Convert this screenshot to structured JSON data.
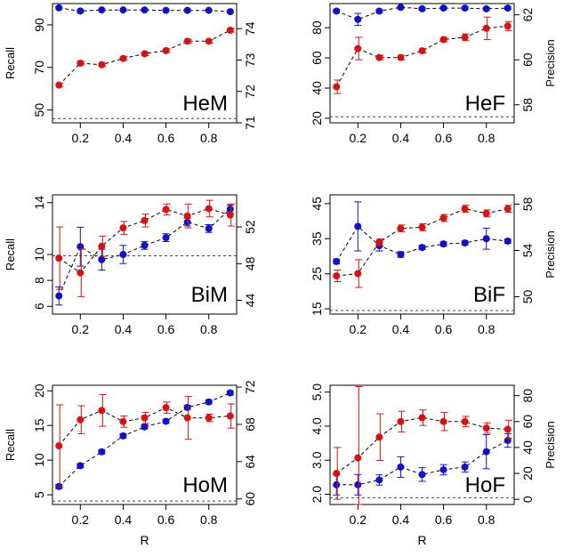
{
  "figure": {
    "colors": {
      "recall": "#1010d0",
      "precision": "#dd1010",
      "line": "#000000",
      "baseline": "#444444"
    }
  },
  "chart_data": [
    {
      "type": "line",
      "title": "HeM",
      "x": [
        0.1,
        0.2,
        0.3,
        0.4,
        0.5,
        0.6,
        0.7,
        0.8,
        0.9
      ],
      "xticks": [
        "0.2",
        "0.4",
        "0.6",
        "0.8"
      ],
      "xlabel": "",
      "left_axis": {
        "label": "Recall",
        "range": [
          44,
          100
        ],
        "ticks": [
          "50",
          "70",
          "90"
        ],
        "tick_values": [
          50,
          70,
          90
        ]
      },
      "right_axis": {
        "label": "",
        "range": [
          71.0,
          74.8
        ],
        "ticks": [
          "71",
          "72",
          "73",
          "74"
        ],
        "tick_values": [
          71,
          72,
          73,
          74
        ]
      },
      "series": [
        {
          "axis": "left",
          "color": "#1010d0",
          "values": [
            98,
            96.5,
            97,
            97,
            97,
            96.8,
            96.8,
            96.8,
            96.2
          ],
          "errors": [
            0.4,
            0.6,
            0.4,
            0.4,
            0.4,
            0.4,
            0.4,
            0.4,
            0.4
          ]
        },
        {
          "axis": "right",
          "color": "#dd1010",
          "values": [
            72.2,
            72.9,
            72.85,
            73.05,
            73.2,
            73.3,
            73.6,
            73.6,
            73.95
          ],
          "errors": [
            0.06,
            0.06,
            0.06,
            0.06,
            0.06,
            0.06,
            0.06,
            0.06,
            0.06
          ]
        }
      ],
      "baseline": 46
    },
    {
      "type": "line",
      "title": "HeF",
      "x": [
        0.1,
        0.2,
        0.3,
        0.4,
        0.5,
        0.6,
        0.7,
        0.8,
        0.9
      ],
      "xticks": [
        "0.2",
        "0.4",
        "0.6",
        "0.8"
      ],
      "xlabel": "",
      "left_axis": {
        "label": "",
        "range": [
          17,
          96
        ],
        "ticks": [
          "20",
          "40",
          "60",
          "80"
        ],
        "tick_values": [
          20,
          40,
          60,
          80
        ]
      },
      "right_axis": {
        "label": "Precision",
        "range": [
          57.2,
          62.5
        ],
        "ticks": [
          "58",
          "60",
          "62"
        ],
        "tick_values": [
          58,
          60,
          62
        ]
      },
      "series": [
        {
          "axis": "left",
          "color": "#1010d0",
          "values": [
            91,
            85.5,
            91,
            93.5,
            92.5,
            93,
            93,
            92.5,
            93
          ],
          "errors": [
            1,
            4,
            1,
            0.8,
            0.8,
            0.8,
            0.8,
            0.8,
            0.8
          ]
        },
        {
          "axis": "right",
          "color": "#dd1010",
          "values": [
            58.8,
            60.5,
            60.1,
            60.1,
            60.4,
            60.9,
            61.0,
            61.4,
            61.5
          ],
          "errors": [
            0.3,
            0.5,
            0.1,
            0.1,
            0.1,
            0.1,
            0.15,
            0.5,
            0.2
          ]
        }
      ],
      "baseline": 21
    },
    {
      "type": "line",
      "title": "BiM",
      "x": [
        0.1,
        0.2,
        0.3,
        0.4,
        0.5,
        0.6,
        0.7,
        0.8,
        0.9
      ],
      "xticks": [
        "0.2",
        "0.4",
        "0.6",
        "0.8"
      ],
      "xlabel": "",
      "left_axis": {
        "label": "Recall",
        "range": [
          5.4,
          14.6
        ],
        "ticks": [
          "6",
          "8",
          "10",
          "14"
        ],
        "tick_values": [
          6,
          8,
          10,
          14
        ]
      },
      "right_axis": {
        "label": "",
        "range": [
          42.5,
          55.5
        ],
        "ticks": [
          "44",
          "48",
          "52"
        ],
        "tick_values": [
          44,
          48,
          52
        ]
      },
      "series": [
        {
          "axis": "left",
          "color": "#1010d0",
          "values": [
            6.8,
            10.6,
            9.6,
            10.0,
            10.7,
            11.3,
            12.5,
            12.0,
            13.5
          ],
          "errors": [
            0.7,
            1.5,
            0.8,
            0.7,
            0.3,
            0.3,
            0.3,
            0.3,
            0.3
          ]
        },
        {
          "axis": "right",
          "color": "#dd1010",
          "values": [
            48.6,
            47.0,
            49.9,
            51.9,
            52.7,
            53.9,
            53.2,
            54.0,
            53.3
          ],
          "errors": [
            3.4,
            2.6,
            1.1,
            0.7,
            0.7,
            0.6,
            1.3,
            0.9,
            1.2
          ]
        }
      ],
      "baseline": 9.9
    },
    {
      "type": "line",
      "title": "BiF",
      "x": [
        0.1,
        0.2,
        0.3,
        0.4,
        0.5,
        0.6,
        0.7,
        0.8,
        0.9
      ],
      "xticks": [
        "0.2",
        "0.4",
        "0.6",
        "0.8"
      ],
      "xlabel": "",
      "left_axis": {
        "label": "",
        "range": [
          13.5,
          47.5
        ],
        "ticks": [
          "15",
          "25",
          "35",
          "45"
        ],
        "tick_values": [
          15,
          25,
          35,
          45
        ]
      },
      "right_axis": {
        "label": "Precision",
        "range": [
          48.5,
          58.8
        ],
        "ticks": [
          "50",
          "54",
          "58"
        ],
        "tick_values": [
          50,
          54,
          58
        ]
      },
      "series": [
        {
          "axis": "left",
          "color": "#1010d0",
          "values": [
            28.5,
            38.5,
            33.0,
            30.5,
            32.5,
            33.5,
            33.8,
            35.0,
            34.3
          ],
          "errors": [
            0.7,
            7,
            1.5,
            0.8,
            0.6,
            0.6,
            0.6,
            3,
            0.6
          ]
        },
        {
          "axis": "right",
          "color": "#dd1010",
          "values": [
            51.8,
            52.0,
            54.7,
            55.9,
            56.0,
            56.8,
            57.6,
            57.2,
            57.6
          ],
          "errors": [
            0.5,
            1.2,
            0.3,
            0.3,
            0.3,
            0.3,
            0.3,
            0.3,
            0.3
          ]
        }
      ],
      "baseline": 14.5
    },
    {
      "type": "line",
      "title": "HoM",
      "x": [
        0.1,
        0.2,
        0.3,
        0.4,
        0.5,
        0.6,
        0.7,
        0.8,
        0.9
      ],
      "xticks": [
        "0.2",
        "0.4",
        "0.6",
        "0.8"
      ],
      "xlabel": "R",
      "left_axis": {
        "label": "Recall",
        "range": [
          3.6,
          20.8
        ],
        "ticks": [
          "5",
          "10",
          "15",
          "20"
        ],
        "tick_values": [
          5,
          10,
          15,
          20
        ]
      },
      "right_axis": {
        "label": "",
        "range": [
          59.4,
          72.2
        ],
        "ticks": [
          "60",
          "64",
          "68",
          "72"
        ],
        "tick_values": [
          60,
          64,
          68,
          72
        ]
      },
      "series": [
        {
          "axis": "left",
          "color": "#1010d0",
          "values": [
            6.2,
            9.2,
            11.2,
            13.5,
            14.8,
            15.6,
            17.6,
            18.4,
            19.7
          ],
          "errors": [
            0.3,
            0.3,
            0.3,
            0.3,
            0.3,
            0.3,
            0.3,
            0.3,
            0.3
          ]
        },
        {
          "axis": "right",
          "color": "#dd1010",
          "values": [
            65.7,
            68.5,
            69.5,
            68.3,
            68.7,
            69.8,
            68.7,
            68.7,
            68.9
          ],
          "errors": [
            4.4,
            1.5,
            1.7,
            0.6,
            0.6,
            0.6,
            2.3,
            0.4,
            1.3
          ]
        }
      ],
      "baseline": 4.1
    },
    {
      "type": "line",
      "title": "HoF",
      "x": [
        0.1,
        0.2,
        0.3,
        0.4,
        0.5,
        0.6,
        0.7,
        0.8,
        0.9
      ],
      "xticks": [
        "0.2",
        "0.4",
        "0.6",
        "0.8"
      ],
      "xlabel": "R",
      "left_axis": {
        "label": "",
        "range": [
          1.7,
          5.2
        ],
        "ticks": [
          "2.0",
          "3.0",
          "4.0",
          "5.0"
        ],
        "tick_values": [
          2.0,
          3.0,
          4.0,
          5.0
        ]
      },
      "right_axis": {
        "label": "Precision",
        "range": [
          -4,
          88
        ],
        "ticks": [
          "0",
          "20",
          "40",
          "60",
          "80"
        ],
        "tick_values": [
          0,
          20,
          40,
          60,
          80
        ]
      },
      "series": [
        {
          "axis": "left",
          "color": "#1010d0",
          "values": [
            2.28,
            2.28,
            2.42,
            2.8,
            2.58,
            2.72,
            2.8,
            3.25,
            3.58
          ],
          "errors": [
            0.3,
            0.3,
            0.15,
            0.3,
            0.2,
            0.15,
            0.15,
            0.5,
            0.2
          ]
        },
        {
          "axis": "right",
          "color": "#dd1010",
          "values": [
            20,
            32,
            48,
            60,
            63,
            60,
            60,
            55,
            54
          ],
          "errors": [
            20,
            55,
            18,
            8,
            6,
            7,
            4,
            4,
            7
          ]
        }
      ],
      "baseline": 1.9
    }
  ]
}
